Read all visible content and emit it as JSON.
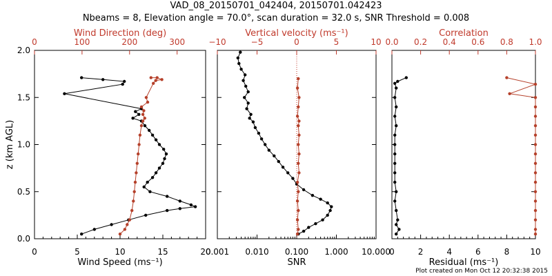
{
  "figure": {
    "title_line1": "VAD_08_20150701_042404, 20150701.042423",
    "title_line2": "Nbeams = 8, Elevation angle = 70.0°, scan duration = 32.0 s, SNR Threshold = 0.008",
    "footer": "Plot created on Mon Oct 12 20:32:38 2015",
    "colors": {
      "black_series": "#000000",
      "red_series": "#b5402a",
      "red_axis": "#c0392b"
    }
  },
  "chart_data": [
    {
      "type": "scatter",
      "panel": "wind",
      "ylabel": "z (km AGL)",
      "ylim": [
        0.0,
        2.0
      ],
      "yticks": [
        "0.0",
        "0.5",
        "1.0",
        "1.5",
        "2.0"
      ],
      "xlabel_bottom": "Wind Speed (ms⁻¹)",
      "xlim_bottom": [
        0,
        20
      ],
      "xticks_bottom": [
        "0",
        "5",
        "10",
        "15",
        "20"
      ],
      "xlabel_top": "Wind Direction (deg)",
      "xlim_top": [
        0,
        360
      ],
      "xticks_top": [
        "0",
        "100",
        "200",
        "300"
      ],
      "series": [
        {
          "axis": "bottom",
          "color": "#000000",
          "points": [
            [
              5.5,
              0.05
            ],
            [
              7.0,
              0.1
            ],
            [
              9.0,
              0.15
            ],
            [
              11.0,
              0.2
            ],
            [
              13.0,
              0.25
            ],
            [
              15.5,
              0.3
            ],
            [
              17.0,
              0.32
            ],
            [
              18.8,
              0.34
            ],
            [
              18.3,
              0.36
            ],
            [
              17.0,
              0.4
            ],
            [
              15.5,
              0.45
            ],
            [
              13.5,
              0.5
            ],
            [
              12.8,
              0.55
            ],
            [
              13.2,
              0.6
            ],
            [
              13.8,
              0.65
            ],
            [
              14.2,
              0.7
            ],
            [
              14.6,
              0.75
            ],
            [
              15.0,
              0.8
            ],
            [
              15.2,
              0.85
            ],
            [
              15.4,
              0.9
            ],
            [
              15.1,
              0.95
            ],
            [
              14.6,
              1.0
            ],
            [
              14.2,
              1.05
            ],
            [
              13.8,
              1.1
            ],
            [
              13.4,
              1.15
            ],
            [
              12.9,
              1.2
            ],
            [
              12.5,
              1.25
            ],
            [
              11.5,
              1.28
            ],
            [
              12.2,
              1.32
            ],
            [
              11.8,
              1.35
            ],
            [
              12.5,
              1.38
            ],
            [
              3.5,
              1.54
            ],
            [
              10.3,
              1.64
            ],
            [
              10.5,
              1.67
            ],
            [
              8.0,
              1.69
            ],
            [
              5.5,
              1.71
            ]
          ]
        },
        {
          "axis": "top",
          "color": "#b5402a",
          "points": [
            [
              180,
              0.05
            ],
            [
              190,
              0.1
            ],
            [
              195,
              0.15
            ],
            [
              200,
              0.2
            ],
            [
              205,
              0.3
            ],
            [
              208,
              0.4
            ],
            [
              210,
              0.5
            ],
            [
              212,
              0.6
            ],
            [
              214,
              0.7
            ],
            [
              216,
              0.8
            ],
            [
              218,
              0.9
            ],
            [
              220,
              1.0
            ],
            [
              222,
              1.1
            ],
            [
              225,
              1.2
            ],
            [
              228,
              1.25
            ],
            [
              232,
              1.28
            ],
            [
              228,
              1.32
            ],
            [
              230,
              1.36
            ],
            [
              225,
              1.4
            ],
            [
              238,
              1.45
            ],
            [
              235,
              1.5
            ],
            [
              250,
              1.65
            ],
            [
              255,
              1.68
            ],
            [
              268,
              1.69
            ],
            [
              258,
              1.71
            ],
            [
              245,
              1.71
            ]
          ]
        }
      ]
    },
    {
      "type": "scatter",
      "panel": "snr",
      "xlabel_bottom": "SNR",
      "xscale_bottom": "log",
      "xlim_bottom": [
        0.001,
        10.0
      ],
      "xticks_bottom": [
        "0.001",
        "0.010",
        "0.100",
        "1.000",
        "10.000"
      ],
      "xlabel_top": "Vertical velocity (ms⁻¹)",
      "xlim_top": [
        -10,
        10
      ],
      "xticks_top": [
        "−10",
        "−5",
        "0",
        "5",
        "10"
      ],
      "series": [
        {
          "axis": "bottom",
          "color": "#000000",
          "points": [
            [
              0.11,
              0.05
            ],
            [
              0.15,
              0.08
            ],
            [
              0.2,
              0.12
            ],
            [
              0.3,
              0.16
            ],
            [
              0.45,
              0.2
            ],
            [
              0.6,
              0.25
            ],
            [
              0.7,
              0.3
            ],
            [
              0.75,
              0.34
            ],
            [
              0.6,
              0.38
            ],
            [
              0.4,
              0.42
            ],
            [
              0.25,
              0.46
            ],
            [
              0.15,
              0.52
            ],
            [
              0.1,
              0.58
            ],
            [
              0.08,
              0.64
            ],
            [
              0.06,
              0.7
            ],
            [
              0.045,
              0.76
            ],
            [
              0.035,
              0.82
            ],
            [
              0.027,
              0.88
            ],
            [
              0.02,
              0.94
            ],
            [
              0.016,
              1.0
            ],
            [
              0.013,
              1.06
            ],
            [
              0.011,
              1.12
            ],
            [
              0.009,
              1.18
            ],
            [
              0.008,
              1.24
            ],
            [
              0.0065,
              1.28
            ],
            [
              0.007,
              1.32
            ],
            [
              0.0055,
              1.38
            ],
            [
              0.006,
              1.44
            ],
            [
              0.0048,
              1.5
            ],
            [
              0.006,
              1.56
            ],
            [
              0.0052,
              1.62
            ],
            [
              0.0045,
              1.68
            ],
            [
              0.005,
              1.74
            ],
            [
              0.004,
              1.8
            ],
            [
              0.0035,
              1.86
            ],
            [
              0.0033,
              1.92
            ],
            [
              0.0038,
              1.98
            ]
          ]
        },
        {
          "axis": "top",
          "color": "#b5402a",
          "points": [
            [
              0.1,
              0.05
            ],
            [
              0.2,
              0.1
            ],
            [
              0.1,
              0.2
            ],
            [
              0.2,
              0.3
            ],
            [
              0.1,
              0.4
            ],
            [
              0.2,
              0.5
            ],
            [
              0.1,
              0.6
            ],
            [
              0.3,
              0.7
            ],
            [
              0.2,
              0.8
            ],
            [
              0.3,
              0.9
            ],
            [
              0.2,
              1.0
            ],
            [
              0.3,
              1.1
            ],
            [
              0.2,
              1.2
            ],
            [
              0.3,
              1.25
            ],
            [
              0.1,
              1.3
            ],
            [
              0.2,
              1.4
            ],
            [
              0.3,
              1.5
            ],
            [
              0.1,
              1.6
            ],
            [
              0.2,
              1.7
            ]
          ]
        }
      ],
      "reference_line_top_x": 0
    },
    {
      "type": "scatter",
      "panel": "residual",
      "xlabel_bottom": "Residual (ms⁻¹)",
      "xlim_bottom": [
        0,
        10
      ],
      "xticks_bottom": [
        "0",
        "2",
        "4",
        "6",
        "8",
        "10"
      ],
      "xlabel_top": "Correlation",
      "xlim_top": [
        0.0,
        1.0
      ],
      "xticks_top": [
        "0.0",
        "0.2",
        "0.4",
        "0.6",
        "0.8",
        "1.0"
      ],
      "series": [
        {
          "axis": "bottom",
          "color": "#000000",
          "points": [
            [
              0.3,
              0.05
            ],
            [
              0.5,
              0.1
            ],
            [
              0.3,
              0.15
            ],
            [
              0.4,
              0.2
            ],
            [
              0.3,
              0.3
            ],
            [
              0.2,
              0.4
            ],
            [
              0.3,
              0.5
            ],
            [
              0.2,
              0.6
            ],
            [
              0.2,
              0.7
            ],
            [
              0.2,
              0.8
            ],
            [
              0.2,
              0.9
            ],
            [
              0.2,
              1.0
            ],
            [
              0.2,
              1.1
            ],
            [
              0.3,
              1.2
            ],
            [
              0.2,
              1.3
            ],
            [
              0.3,
              1.4
            ],
            [
              0.2,
              1.5
            ],
            [
              0.3,
              1.6
            ],
            [
              0.2,
              1.65
            ],
            [
              0.4,
              1.67
            ],
            [
              1.0,
              1.71
            ]
          ]
        },
        {
          "axis": "top",
          "color": "#b5402a",
          "points": [
            [
              1.0,
              0.05
            ],
            [
              1.0,
              0.1
            ],
            [
              1.0,
              0.2
            ],
            [
              1.0,
              0.3
            ],
            [
              1.0,
              0.4
            ],
            [
              1.0,
              0.5
            ],
            [
              1.0,
              0.6
            ],
            [
              1.0,
              0.7
            ],
            [
              1.0,
              0.8
            ],
            [
              1.0,
              0.9
            ],
            [
              1.0,
              1.0
            ],
            [
              1.0,
              1.1
            ],
            [
              1.0,
              1.2
            ],
            [
              1.0,
              1.3
            ],
            [
              1.0,
              1.4
            ],
            [
              1.0,
              1.5
            ],
            [
              0.82,
              1.54
            ],
            [
              1.0,
              1.64
            ],
            [
              0.8,
              1.71
            ]
          ]
        }
      ]
    }
  ]
}
